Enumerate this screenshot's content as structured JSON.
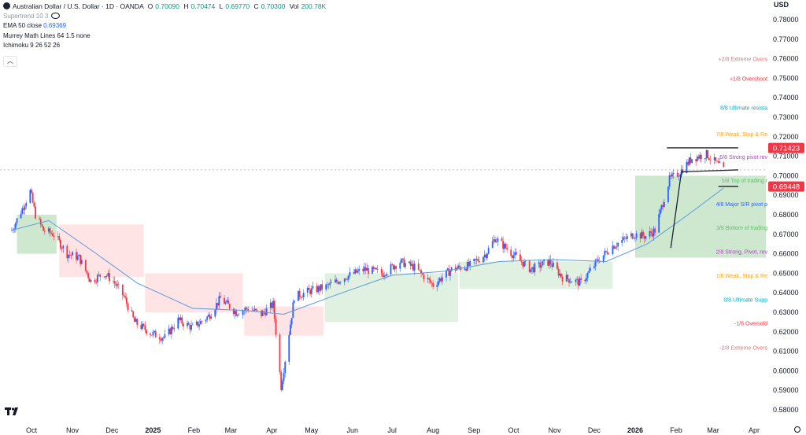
{
  "legend": {
    "symbol_title": "Australian Dollar / U.S. Dollar · 1D · OANDA",
    "open_label": "O",
    "open_value": "0.70090",
    "high_label": "H",
    "high_value": "0.70474",
    "low_label": "L",
    "low_value": "0.69770",
    "close_label": "C",
    "close_value": "0.70300",
    "volume_label": "Vol",
    "volume_value": "200.78K",
    "indicators": [
      {
        "name": "Supertrend 10 3",
        "value": ""
      },
      {
        "name": "EMA 50 close",
        "value": "0.69369"
      },
      {
        "name": "Murrey Math Lines 64 1.5 none",
        "value": ""
      },
      {
        "name": "Ichimoku 9 26 52 26",
        "value": ""
      }
    ],
    "collapse_icon": "chevron-up-icon"
  },
  "axis": {
    "currency": "USD",
    "price_ticks": [
      "0.78000",
      "0.77000",
      "0.76000",
      "0.75000",
      "0.74000",
      "0.73000",
      "0.72000",
      "0.71000",
      "0.70000",
      "0.69000",
      "0.68000",
      "0.67000",
      "0.66000",
      "0.65000",
      "0.64000",
      "0.63000",
      "0.62000",
      "0.61000",
      "0.60000",
      "0.59000",
      "0.58000"
    ],
    "time_ticks": [
      "Oct",
      "Nov",
      "Dec",
      "2025",
      "Feb",
      "Mar",
      "Apr",
      "May",
      "Jun",
      "Jul",
      "Aug",
      "Sep",
      "Oct",
      "Nov",
      "Dec",
      "2026",
      "Feb",
      "Mar",
      "Apr"
    ],
    "settings_icon": "gear-icon"
  },
  "price_labels": [
    {
      "text": "0.71423",
      "color": "#f23645"
    },
    {
      "text": "0.69448",
      "color": "#f23645"
    }
  ],
  "murrey_labels": [
    {
      "text": "+2/8 Extreme Overs",
      "price": 0.76,
      "color": "#e57373"
    },
    {
      "text": "+1/8 Overshoot",
      "price": 0.75,
      "color": "#f23645"
    },
    {
      "text": "8/8 Ultimate resista",
      "price": 0.735,
      "color": "#00acc1"
    },
    {
      "text": "7/8 Weak, Stop & Re",
      "price": 0.7215,
      "color": "#f5a623"
    },
    {
      "text": "6/8 Strong pivot rev",
      "price": 0.7098,
      "color": "#ab47bc"
    },
    {
      "text": "5/8 Top of trading r",
      "price": 0.6978,
      "color": "#66bb6a"
    },
    {
      "text": "4/8 Major S/R pivot p",
      "price": 0.6857,
      "color": "#2962ff"
    },
    {
      "text": "3/8 Bottom of trading",
      "price": 0.6735,
      "color": "#66bb6a"
    },
    {
      "text": "2/8 Strong, Pivot, rev",
      "price": 0.6612,
      "color": "#ab47bc"
    },
    {
      "text": "1/8 Weak, Stop & Re",
      "price": 0.649,
      "color": "#f5a623"
    },
    {
      "text": "0/8 Ultimate Supp",
      "price": 0.6367,
      "color": "#00acc1"
    },
    {
      "text": "-1/8 Oversold",
      "price": 0.6245,
      "color": "#f23645"
    },
    {
      "text": "-2/8 Extreme Overs",
      "price": 0.612,
      "color": "#e57373"
    }
  ],
  "chart_data": {
    "type": "candlestick",
    "title": "Australian Dollar / U.S. Dollar · 1D · OANDA",
    "ylabel": "USD",
    "ylim": [
      0.58,
      0.785
    ],
    "x_range": [
      "2024-09-16",
      "2026-04-30"
    ],
    "close_series": [
      [
        "2024-09-16",
        0.672
      ],
      [
        "2024-09-24",
        0.683
      ],
      [
        "2024-09-30",
        0.692
      ],
      [
        "2024-10-04",
        0.68
      ],
      [
        "2024-10-10",
        0.672
      ],
      [
        "2024-10-18",
        0.67
      ],
      [
        "2024-10-28",
        0.66
      ],
      [
        "2024-11-06",
        0.658
      ],
      [
        "2024-11-15",
        0.646
      ],
      [
        "2024-11-25",
        0.65
      ],
      [
        "2024-12-02",
        0.646
      ],
      [
        "2024-12-10",
        0.638
      ],
      [
        "2024-12-18",
        0.625
      ],
      [
        "2024-12-31",
        0.619
      ],
      [
        "2025-01-10",
        0.617
      ],
      [
        "2025-01-20",
        0.626
      ],
      [
        "2025-01-31",
        0.622
      ],
      [
        "2025-02-12",
        0.628
      ],
      [
        "2025-02-21",
        0.637
      ],
      [
        "2025-03-05",
        0.63
      ],
      [
        "2025-03-14",
        0.632
      ],
      [
        "2025-03-24",
        0.629
      ],
      [
        "2025-04-02",
        0.634
      ],
      [
        "2025-04-08",
        0.592
      ],
      [
        "2025-04-18",
        0.638
      ],
      [
        "2025-04-30",
        0.641
      ],
      [
        "2025-05-12",
        0.643
      ],
      [
        "2025-05-26",
        0.648
      ],
      [
        "2025-06-10",
        0.652
      ],
      [
        "2025-06-24",
        0.65
      ],
      [
        "2025-07-07",
        0.656
      ],
      [
        "2025-07-18",
        0.653
      ],
      [
        "2025-08-01",
        0.644
      ],
      [
        "2025-08-15",
        0.652
      ],
      [
        "2025-08-29",
        0.654
      ],
      [
        "2025-09-10",
        0.66
      ],
      [
        "2025-09-17",
        0.668
      ],
      [
        "2025-09-30",
        0.66
      ],
      [
        "2025-10-14",
        0.652
      ],
      [
        "2025-10-28",
        0.656
      ],
      [
        "2025-11-07",
        0.648
      ],
      [
        "2025-11-21",
        0.645
      ],
      [
        "2025-12-03",
        0.656
      ],
      [
        "2025-12-15",
        0.664
      ],
      [
        "2025-12-31",
        0.67
      ],
      [
        "2026-01-09",
        0.669
      ],
      [
        "2026-01-16",
        0.672
      ],
      [
        "2026-01-27",
        0.698
      ],
      [
        "2026-02-04",
        0.702
      ],
      [
        "2026-02-13",
        0.709
      ],
      [
        "2026-02-24",
        0.711
      ],
      [
        "2026-03-04",
        0.706
      ],
      [
        "2026-03-09",
        0.703
      ]
    ],
    "ema50": [
      [
        "2024-09-16",
        0.672
      ],
      [
        "2024-10-14",
        0.677
      ],
      [
        "2024-11-15",
        0.662
      ],
      [
        "2024-12-20",
        0.645
      ],
      [
        "2025-01-31",
        0.632
      ],
      [
        "2025-03-10",
        0.631
      ],
      [
        "2025-04-10",
        0.629
      ],
      [
        "2025-05-20",
        0.639
      ],
      [
        "2025-07-01",
        0.649
      ],
      [
        "2025-08-10",
        0.651
      ],
      [
        "2025-09-20",
        0.656
      ],
      [
        "2025-10-30",
        0.657
      ],
      [
        "2025-12-10",
        0.656
      ],
      [
        "2026-01-10",
        0.665
      ],
      [
        "2026-02-10",
        0.68
      ],
      [
        "2026-03-09",
        0.6937
      ]
    ],
    "kumo": [
      {
        "from": "2024-09-20",
        "to": "2024-10-20",
        "top": 0.68,
        "bottom": 0.66,
        "color": "#a5d6a7"
      },
      {
        "from": "2024-10-22",
        "to": "2024-12-25",
        "top": 0.675,
        "bottom": 0.648,
        "color": "#ffcdd2"
      },
      {
        "from": "2024-12-26",
        "to": "2025-03-10",
        "top": 0.65,
        "bottom": 0.63,
        "color": "#ffcdd2"
      },
      {
        "from": "2025-03-11",
        "to": "2025-05-10",
        "top": 0.633,
        "bottom": 0.618,
        "color": "#ffcdd2"
      },
      {
        "from": "2025-05-11",
        "to": "2025-08-20",
        "top": 0.65,
        "bottom": 0.625,
        "color": "#c8e6c9"
      },
      {
        "from": "2025-08-21",
        "to": "2025-12-15",
        "top": 0.656,
        "bottom": 0.642,
        "color": "#c8e6c9"
      },
      {
        "from": "2026-01-01",
        "to": "2026-04-10",
        "top": 0.7,
        "bottom": 0.658,
        "color": "#a5d6a7"
      }
    ],
    "last_price_line": 0.703,
    "annotation_lines": [
      {
        "from": [
          "2026-01-25",
          0.7143
        ],
        "to": [
          "2026-03-20",
          0.7143
        ],
        "color": "#1e222d"
      },
      {
        "from": [
          "2026-01-28",
          0.663
        ],
        "to": [
          "2026-02-05",
          0.702
        ],
        "color": "#1e222d"
      },
      {
        "from": [
          "2026-02-05",
          0.702
        ],
        "to": [
          "2026-03-20",
          0.703
        ],
        "color": "#1e222d"
      },
      {
        "from": [
          "2026-03-05",
          0.6945
        ],
        "to": [
          "2026-03-20",
          0.6945
        ],
        "color": "#1e222d"
      }
    ]
  }
}
